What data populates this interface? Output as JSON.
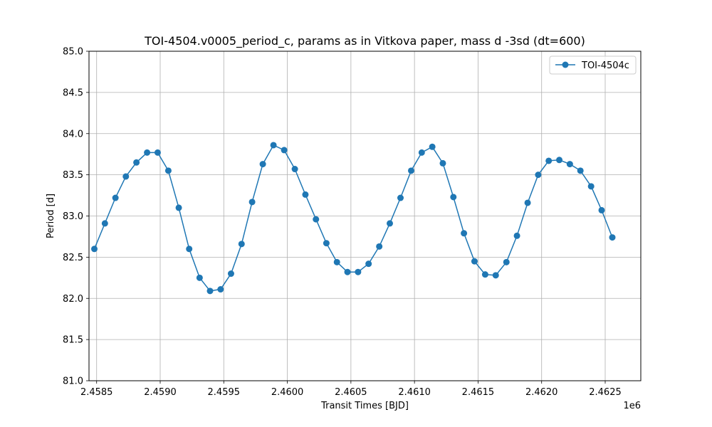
{
  "chart_data": {
    "type": "line",
    "title": "TOI-4504.v0005_period_c, params as in Vitkova paper, mass d -3sd (dt=600)",
    "xlabel": "Transit Times [BJD]",
    "ylabel": "Period [d]",
    "x_offset_label": "1e6",
    "xlim": [
      2458440,
      2462780
    ],
    "ylim": [
      81.0,
      85.0
    ],
    "xticks": [
      2458500,
      2459000,
      2459500,
      2460000,
      2460500,
      2461000,
      2461500,
      2462000,
      2462500
    ],
    "xtick_labels": [
      "2.4585",
      "2.4590",
      "2.4595",
      "2.4600",
      "2.4605",
      "2.4610",
      "2.4615",
      "2.4620",
      "2.4625"
    ],
    "yticks": [
      81.0,
      81.5,
      82.0,
      82.5,
      83.0,
      83.5,
      84.0,
      84.5,
      85.0
    ],
    "ytick_labels": [
      "81.0",
      "81.5",
      "82.0",
      "82.5",
      "83.0",
      "83.5",
      "84.0",
      "84.5",
      "85.0"
    ],
    "grid": true,
    "legend_position": "top-right",
    "series": [
      {
        "name": "TOI-4504c",
        "color": "#1f77b4",
        "marker": "circle",
        "x": [
          2458482,
          2458565,
          2458648,
          2458730,
          2458813,
          2458897,
          2458980,
          2459064,
          2459146,
          2459228,
          2459310,
          2459392,
          2459475,
          2459557,
          2459640,
          2459723,
          2459807,
          2459891,
          2459975,
          2460059,
          2460142,
          2460225,
          2460307,
          2460390,
          2460473,
          2460556,
          2460639,
          2460723,
          2460806,
          2460890,
          2460974,
          2461057,
          2461140,
          2461223,
          2461306,
          2461389,
          2461472,
          2461556,
          2461639,
          2461723,
          2461806,
          2461890,
          2461973,
          2462056,
          2462139,
          2462222,
          2462305,
          2462389,
          2462472,
          2462556
        ],
        "y": [
          82.6,
          82.91,
          83.22,
          83.48,
          83.65,
          83.77,
          83.77,
          83.55,
          83.1,
          82.6,
          82.25,
          82.09,
          82.11,
          82.3,
          82.66,
          83.17,
          83.63,
          83.86,
          83.8,
          83.57,
          83.26,
          82.96,
          82.67,
          82.44,
          82.32,
          82.32,
          82.42,
          82.63,
          82.91,
          83.22,
          83.55,
          83.77,
          83.84,
          83.64,
          83.23,
          82.79,
          82.45,
          82.29,
          82.28,
          82.44,
          82.76,
          83.16,
          83.5,
          83.67,
          83.68,
          83.63,
          83.55,
          83.36,
          83.07,
          82.74
        ]
      }
    ]
  }
}
